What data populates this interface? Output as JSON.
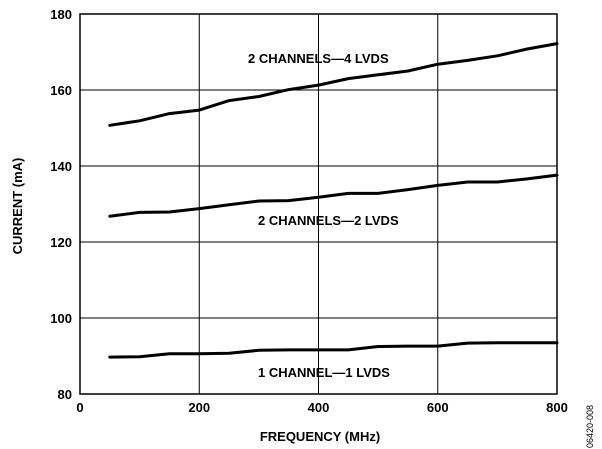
{
  "figure_id": "06420-008",
  "chart_data": {
    "type": "line",
    "title": "",
    "xlabel": "FREQUENCY (MHz)",
    "ylabel": "CURRENT (mA)",
    "xlim": [
      0,
      800
    ],
    "ylim": [
      80,
      180
    ],
    "xticks": [
      0,
      200,
      400,
      600,
      800
    ],
    "yticks": [
      80,
      100,
      120,
      140,
      160,
      180
    ],
    "grid": true,
    "x": [
      50,
      100,
      150,
      200,
      250,
      300,
      350,
      400,
      450,
      500,
      550,
      600,
      650,
      700,
      750,
      800
    ],
    "series": [
      {
        "name": "2 CHANNELS—4 LVDS",
        "values": [
          150.7,
          151.9,
          153.8,
          154.7,
          157.2,
          158.3,
          160.1,
          161.3,
          163.0,
          164.0,
          165.0,
          166.8,
          167.8,
          169.0,
          170.8,
          172.2
        ]
      },
      {
        "name": "2 CHANNELS—2 LVDS",
        "values": [
          126.8,
          127.8,
          127.9,
          128.8,
          129.8,
          130.8,
          130.9,
          131.8,
          132.8,
          132.8,
          133.8,
          134.9,
          135.8,
          135.8,
          136.6,
          137.6
        ]
      },
      {
        "name": "1 CHANNEL—1 LVDS",
        "values": [
          89.7,
          89.8,
          90.6,
          90.6,
          90.7,
          91.5,
          91.6,
          91.6,
          91.6,
          92.5,
          92.6,
          92.6,
          93.4,
          93.5,
          93.5,
          93.5
        ]
      }
    ]
  }
}
